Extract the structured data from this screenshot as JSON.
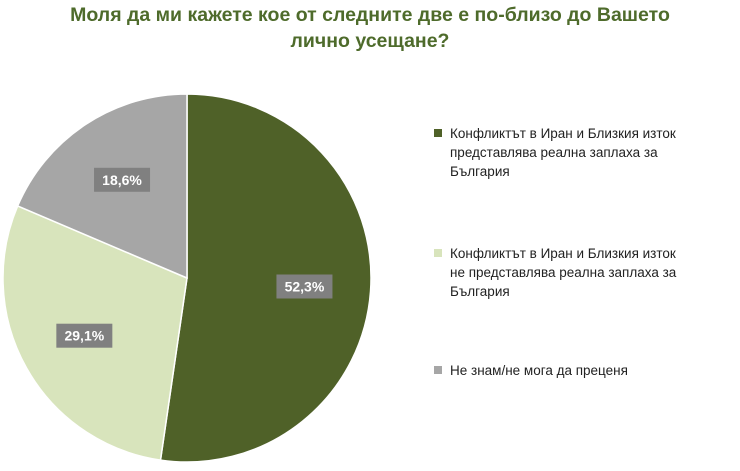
{
  "title": {
    "line1": "Моля да ми кажете кое от следните две е по-близо до Вашето",
    "line2": "лично усещане?"
  },
  "chart_data": {
    "type": "pie",
    "title": "Моля да ми кажете кое от следните две е по-близо до Вашето лично усещане?",
    "slices": [
      {
        "label": "Конфликтът в Иран и Близкия изток представлява реална заплаха за България",
        "value": 52.3,
        "value_label": "52,3%",
        "color": "#4f6128"
      },
      {
        "label": "Конфликтът в Иран и Близкия изток не представлява реална заплаха за България",
        "value": 29.1,
        "value_label": "29,1%",
        "color": "#d8e4bc"
      },
      {
        "label": "Не знам/не мога да преценя",
        "value": 18.6,
        "value_label": "18,6%",
        "color": "#a6a6a6"
      }
    ],
    "legend_position": "right",
    "start_angle": "12 o'clock",
    "direction": "clockwise"
  },
  "legend": {
    "items": [
      {
        "line1": "Конфликтът в Иран и Близкия изток",
        "line2": "представлява реална заплаха за България",
        "line3": ""
      },
      {
        "line1": "Конфликтът в Иран и Близкия изток",
        "line2": "не представлява реална заплаха за",
        "line3": "България"
      },
      {
        "line1": "Не знам/не мога да преценя",
        "line2": "",
        "line3": ""
      }
    ]
  }
}
